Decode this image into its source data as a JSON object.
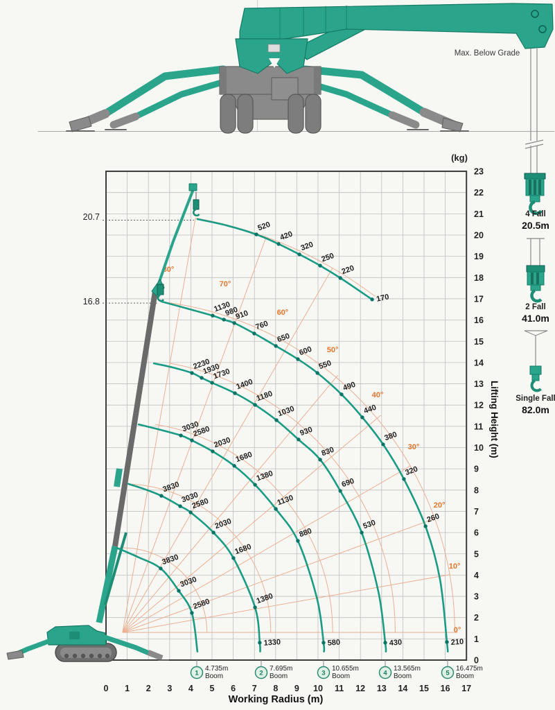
{
  "illustration": {
    "max_below_grade_label": "Max. Below Grade"
  },
  "hook_reeving": [
    {
      "name": "4 Fall",
      "rope_length": "20.5m"
    },
    {
      "name": "2 Fall",
      "rope_length": "41.0m"
    },
    {
      "name": "Single Fall",
      "rope_length": "82.0m"
    }
  ],
  "colors": {
    "teal": "#2AA58B",
    "teal_dark": "#147A64",
    "teal_deep": "#1E8D76",
    "curve": "#1A9B84",
    "dot": "#0A7466",
    "orange_label": "#E2762D",
    "orange_line": "#ECB092",
    "machine_gray": "#8A8A8A",
    "grid": "#BFBFBF",
    "border": "#3C3C3C"
  },
  "chart_data": {
    "type": "line",
    "unit_label": "(kg)",
    "xlabel": "Working Radius (m)",
    "ylabel": "Lifting Height (m)",
    "xlim": [
      0,
      17
    ],
    "ylim": [
      0,
      23
    ],
    "grid": true,
    "x_ticks": [
      "0",
      "1",
      "2",
      "3",
      "4",
      "5",
      "6",
      "7",
      "8",
      "9",
      "10",
      "11",
      "12",
      "13",
      "14",
      "15",
      "16",
      "17"
    ],
    "y_ticks": [
      "0",
      "1",
      "2",
      "3",
      "4",
      "5",
      "6",
      "7",
      "8",
      "9",
      "10",
      "11",
      "12",
      "13",
      "14",
      "15",
      "16",
      "17",
      "18",
      "19",
      "20",
      "21",
      "22",
      "23"
    ],
    "height_marks": [
      {
        "label": "20.7",
        "h": 20.7,
        "x_end": 4.15
      },
      {
        "label": "16.8",
        "h": 16.8,
        "x_end": 2.45
      }
    ],
    "angle_labels": [
      {
        "text": "80°",
        "r": 2.94,
        "h": 18.27
      },
      {
        "text": "70°",
        "r": 5.62,
        "h": 17.58
      },
      {
        "text": "60°",
        "r": 8.33,
        "h": 16.25
      },
      {
        "text": "50°",
        "r": 10.69,
        "h": 14.49
      },
      {
        "text": "40°",
        "r": 12.81,
        "h": 12.36
      },
      {
        "text": "30°",
        "r": 14.51,
        "h": 9.92
      },
      {
        "text": "20°",
        "r": 15.72,
        "h": 7.18
      },
      {
        "text": "10°",
        "r": 16.44,
        "h": 4.31
      },
      {
        "text": "0°",
        "r": 16.57,
        "h": 1.3
      }
    ],
    "fan": {
      "pivot": {
        "r": 0.78,
        "h": 1.3
      },
      "radials": [
        {
          "a": 0,
          "len": 15.8
        },
        {
          "a": 10,
          "len": 15.7
        },
        {
          "a": 20,
          "len": 15.7
        },
        {
          "a": 30,
          "len": 15.7
        },
        {
          "a": 40,
          "len": 15.9
        },
        {
          "a": 50,
          "len": 15.8
        },
        {
          "a": 60,
          "len": 19.8
        },
        {
          "a": 70,
          "len": 19.8
        },
        {
          "a": 80,
          "len": 19.8
        }
      ],
      "arcs": [
        {
          "radius": 3.98,
          "a0": 0,
          "a1": 92
        },
        {
          "radius": 6.99,
          "a0": 0,
          "a1": 88
        },
        {
          "radius": 9.91,
          "a0": 0,
          "a1": 81
        },
        {
          "radius": 12.86,
          "a0": 0,
          "a1": 80
        },
        {
          "radius": 15.67,
          "a0": 0,
          "a1": 83
        },
        {
          "radius": 19.8,
          "a0": 53,
          "a1": 80
        }
      ]
    },
    "series": [
      {
        "name": "max-height-20.7m",
        "points": [
          {
            "r": 4.31,
            "h": 20.75
          },
          {
            "r": 5.7,
            "h": 20.45
          },
          {
            "r": 7.09,
            "h": 20.03,
            "label": "520"
          },
          {
            "r": 8.14,
            "h": 19.58,
            "label": "420"
          },
          {
            "r": 9.12,
            "h": 19.09,
            "label": "320"
          },
          {
            "r": 10.1,
            "h": 18.56,
            "label": "250"
          },
          {
            "r": 11.05,
            "h": 17.98,
            "label": "220"
          },
          {
            "r": 12.55,
            "h": 16.97,
            "label": "170",
            "right": true
          }
        ]
      },
      {
        "name": "boom-5-16.475m",
        "points": [
          {
            "r": 2.61,
            "h": 16.87
          },
          {
            "r": 3.8,
            "h": 16.55
          },
          {
            "r": 5.03,
            "h": 16.21,
            "label": "1130"
          },
          {
            "r": 5.56,
            "h": 16.02,
            "label": "980"
          },
          {
            "r": 6.05,
            "h": 15.86,
            "label": "910"
          },
          {
            "r": 6.99,
            "h": 15.37,
            "label": "760"
          },
          {
            "r": 8.01,
            "h": 14.78,
            "label": "650"
          },
          {
            "r": 9.05,
            "h": 14.16,
            "label": "600"
          },
          {
            "r": 9.97,
            "h": 13.51,
            "label": "550"
          },
          {
            "r": 11.11,
            "h": 12.5,
            "label": "490"
          },
          {
            "r": 12.09,
            "h": 11.42,
            "label": "440"
          },
          {
            "r": 13.07,
            "h": 10.15,
            "label": "380"
          },
          {
            "r": 14.05,
            "h": 8.52,
            "label": "320"
          },
          {
            "r": 15.07,
            "h": 6.3,
            "label": "260"
          },
          {
            "r": 15.75,
            "h": 3.8
          },
          {
            "r": 16.08,
            "h": 0.85,
            "label": "210"
          },
          {
            "r": 16.12,
            "h": 0.4
          }
        ]
      },
      {
        "name": "boom-4-13.565m",
        "points": [
          {
            "r": 2.26,
            "h": 13.96
          },
          {
            "r": 3.1,
            "h": 13.78
          },
          {
            "r": 4.05,
            "h": 13.51,
            "label": "2230"
          },
          {
            "r": 4.51,
            "h": 13.28,
            "label": "1930"
          },
          {
            "r": 5.0,
            "h": 13.05,
            "label": "1730"
          },
          {
            "r": 6.08,
            "h": 12.56,
            "label": "1400"
          },
          {
            "r": 7.03,
            "h": 12.01,
            "label": "1180"
          },
          {
            "r": 8.04,
            "h": 11.29,
            "label": "1030"
          },
          {
            "r": 9.08,
            "h": 10.38,
            "label": "930"
          },
          {
            "r": 10.1,
            "h": 9.43,
            "label": "830"
          },
          {
            "r": 11.05,
            "h": 7.96,
            "label": "690"
          },
          {
            "r": 12.06,
            "h": 6.0,
            "label": "530"
          },
          {
            "r": 12.85,
            "h": 3.2
          },
          {
            "r": 13.17,
            "h": 0.82,
            "label": "430"
          },
          {
            "r": 13.2,
            "h": 0.4
          }
        ]
      },
      {
        "name": "boom-3-10.655m",
        "points": [
          {
            "r": 1.54,
            "h": 11.09
          },
          {
            "r": 2.5,
            "h": 10.85
          },
          {
            "r": 3.53,
            "h": 10.57,
            "label": "3030"
          },
          {
            "r": 4.05,
            "h": 10.34,
            "label": "2580"
          },
          {
            "r": 5.03,
            "h": 9.82,
            "label": "2030"
          },
          {
            "r": 6.05,
            "h": 9.14,
            "label": "1680"
          },
          {
            "r": 7.03,
            "h": 8.25,
            "label": "1380"
          },
          {
            "r": 8.01,
            "h": 7.11,
            "label": "1130"
          },
          {
            "r": 9.05,
            "h": 5.61,
            "label": "880"
          },
          {
            "r": 9.95,
            "h": 2.9
          },
          {
            "r": 10.26,
            "h": 0.82,
            "label": "580"
          },
          {
            "r": 10.28,
            "h": 0.4
          }
        ]
      },
      {
        "name": "boom-2-7.695m",
        "points": [
          {
            "r": 1.05,
            "h": 8.29
          },
          {
            "r": 1.8,
            "h": 8.05
          },
          {
            "r": 2.61,
            "h": 7.73,
            "label": "3830"
          },
          {
            "r": 3.5,
            "h": 7.24,
            "label": "3030"
          },
          {
            "r": 3.99,
            "h": 6.95,
            "label": "2580"
          },
          {
            "r": 5.07,
            "h": 6.0,
            "label": "2030"
          },
          {
            "r": 6.01,
            "h": 4.8,
            "label": "1680"
          },
          {
            "r": 7.03,
            "h": 2.48,
            "label": "1380"
          },
          {
            "r": 7.25,
            "h": 0.82,
            "label": "1330"
          },
          {
            "r": 7.27,
            "h": 0.4
          }
        ]
      },
      {
        "name": "boom-1-4.735m",
        "points": [
          {
            "r": 0.49,
            "h": 5.29
          },
          {
            "r": 1.5,
            "h": 4.85
          },
          {
            "r": 2.58,
            "h": 4.31,
            "label": "3830"
          },
          {
            "r": 3.43,
            "h": 3.26,
            "label": "3030"
          },
          {
            "r": 4.05,
            "h": 2.22,
            "label": "2580"
          },
          {
            "r": 4.31,
            "h": 0.4
          }
        ]
      }
    ],
    "boom_markers": [
      {
        "num": "1",
        "length": "4.735m",
        "sub": "Boom",
        "r": 4.28
      },
      {
        "num": "2",
        "length": "7.695m",
        "sub": "Boom",
        "r": 7.32
      },
      {
        "num": "3",
        "length": "10.655m",
        "sub": "Boom",
        "r": 10.26
      },
      {
        "num": "4",
        "length": "13.565m",
        "sub": "Boom",
        "r": 13.17
      },
      {
        "num": "5",
        "length": "16.475m",
        "sub": "Boom",
        "r": 16.11
      }
    ]
  }
}
